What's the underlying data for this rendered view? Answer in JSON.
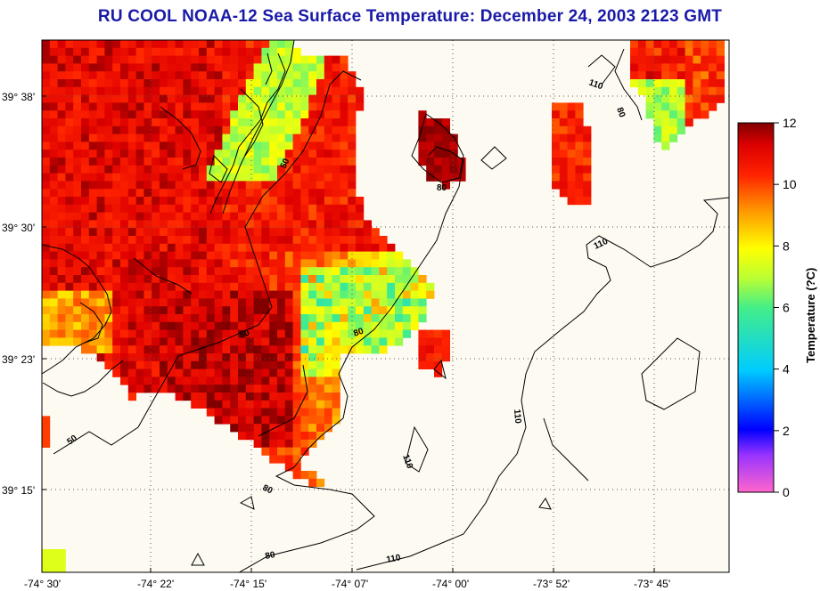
{
  "title": "RU COOL  NOAA-12  Sea Surface Temperature:  December 24, 2003 2123 GMT",
  "latitude_labels": [
    "39° 38'",
    "39° 30'",
    "39° 23'",
    "39° 15'"
  ],
  "longitude_labels": [
    "-74° 30'",
    "-74° 22'",
    "-74° 15'",
    "-74° 07'",
    "-74° 00'",
    "-73° 52'",
    "-73° 45'"
  ],
  "colorbar": {
    "title": "Temperature (?C)",
    "ticks": [
      "12",
      "10",
      "8",
      "6",
      "4",
      "2",
      "0"
    ],
    "range": [
      0,
      12
    ]
  },
  "contour_labels": [
    "50",
    "80",
    "110"
  ],
  "colors": {
    "title": "#1a1aa8",
    "background": "#fdfaf2",
    "coastline": "#000000"
  }
}
